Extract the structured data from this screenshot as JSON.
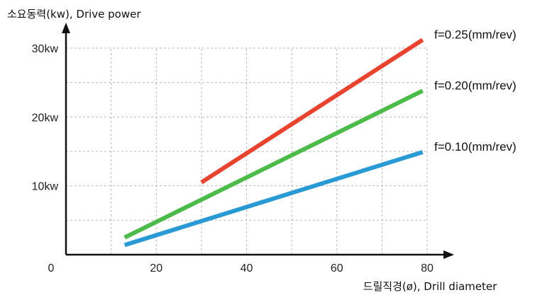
{
  "chart_data": {
    "type": "line",
    "ylabel": "소요동력(kw), Drive power",
    "xlabel": "드릴직경(ø), Drill diameter",
    "origin_label": "0",
    "xlim": [
      0,
      80
    ],
    "ylim": [
      0,
      30
    ],
    "x_ticks": [
      {
        "value": 20,
        "label": "20"
      },
      {
        "value": 40,
        "label": "40"
      },
      {
        "value": 60,
        "label": "60"
      },
      {
        "value": 80,
        "label": "80"
      }
    ],
    "y_ticks": [
      {
        "value": 10,
        "label": "10kw"
      },
      {
        "value": 20,
        "label": "20kw"
      },
      {
        "value": 30,
        "label": "30kw"
      }
    ],
    "grid_x": [
      10,
      20,
      30,
      40,
      50,
      60,
      70,
      80
    ],
    "grid_y": [
      5,
      10,
      15,
      20,
      25,
      30
    ],
    "grid": true,
    "series": [
      {
        "name": "f=0.25(mm/rev)",
        "color": "#E8432E",
        "x": [
          30,
          79
        ],
        "y": [
          10.5,
          31.2
        ]
      },
      {
        "name": "f=0.20(mm/rev)",
        "color": "#4CBB4A",
        "x": [
          13,
          79
        ],
        "y": [
          2.5,
          23.8
        ]
      },
      {
        "name": "f=0.10(mm/rev)",
        "color": "#2A9AD4",
        "x": [
          13,
          79
        ],
        "y": [
          1.4,
          14.9
        ]
      }
    ]
  }
}
